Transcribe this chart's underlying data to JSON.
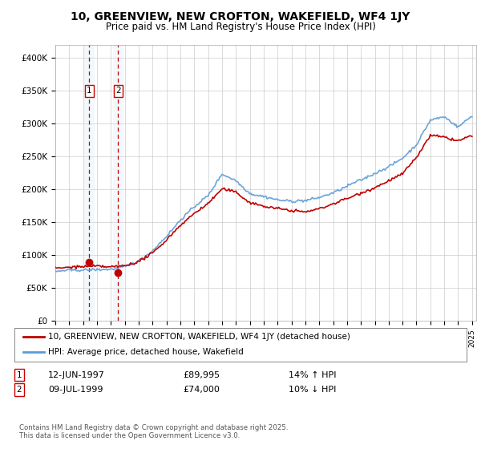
{
  "title": "10, GREENVIEW, NEW CROFTON, WAKEFIELD, WF4 1JY",
  "subtitle": "Price paid vs. HM Land Registry's House Price Index (HPI)",
  "sale1_date": "12-JUN-1997",
  "sale1_price": 89995,
  "sale1_label": "14% ↑ HPI",
  "sale1_year": 1997.45,
  "sale2_date": "09-JUL-1999",
  "sale2_price": 74000,
  "sale2_label": "10% ↓ HPI",
  "sale2_year": 1999.53,
  "legend_line1": "10, GREENVIEW, NEW CROFTON, WAKEFIELD, WF4 1JY (detached house)",
  "legend_line2": "HPI: Average price, detached house, Wakefield",
  "footnote": "Contains HM Land Registry data © Crown copyright and database right 2025.\nThis data is licensed under the Open Government Licence v3.0.",
  "hpi_color": "#5b9bd5",
  "price_color": "#c00000",
  "sale_dot_color": "#c00000",
  "vline_color": "#c00000",
  "shade_color": "#d6e8f5",
  "background_color": "#ffffff",
  "ylim_max": 420000,
  "ylim_min": 0,
  "hpi_knots": [
    1995,
    1996,
    1997,
    1998,
    1999,
    2000,
    2001,
    2002,
    2003,
    2004,
    2005,
    2006,
    2007,
    2008,
    2009,
    2010,
    2011,
    2012,
    2013,
    2014,
    2015,
    2016,
    2017,
    2018,
    2019,
    2020,
    2021,
    2022,
    2023,
    2024,
    2025
  ],
  "hpi_vals": [
    75000,
    77000,
    78000,
    79000,
    80000,
    84000,
    92000,
    108000,
    130000,
    155000,
    175000,
    192000,
    225000,
    215000,
    195000,
    190000,
    185000,
    183000,
    183000,
    188000,
    195000,
    205000,
    215000,
    225000,
    235000,
    248000,
    268000,
    305000,
    310000,
    295000,
    312000
  ],
  "price_knots": [
    1995,
    1996,
    1997,
    1998,
    1999,
    2000,
    2001,
    2002,
    2003,
    2004,
    2005,
    2006,
    2007,
    2008,
    2009,
    2010,
    2011,
    2012,
    2013,
    2014,
    2015,
    2016,
    2017,
    2018,
    2019,
    2020,
    2021,
    2022,
    2023,
    2024,
    2025
  ],
  "price_vals": [
    80000,
    82000,
    83000,
    84000,
    82000,
    84000,
    90000,
    103000,
    123000,
    145000,
    163000,
    178000,
    200000,
    195000,
    178000,
    172000,
    168000,
    165000,
    163000,
    168000,
    175000,
    183000,
    192000,
    200000,
    210000,
    220000,
    245000,
    278000,
    275000,
    270000,
    278000
  ],
  "noise_seed": 42,
  "hpi_noise": 2500,
  "price_noise": 2500
}
